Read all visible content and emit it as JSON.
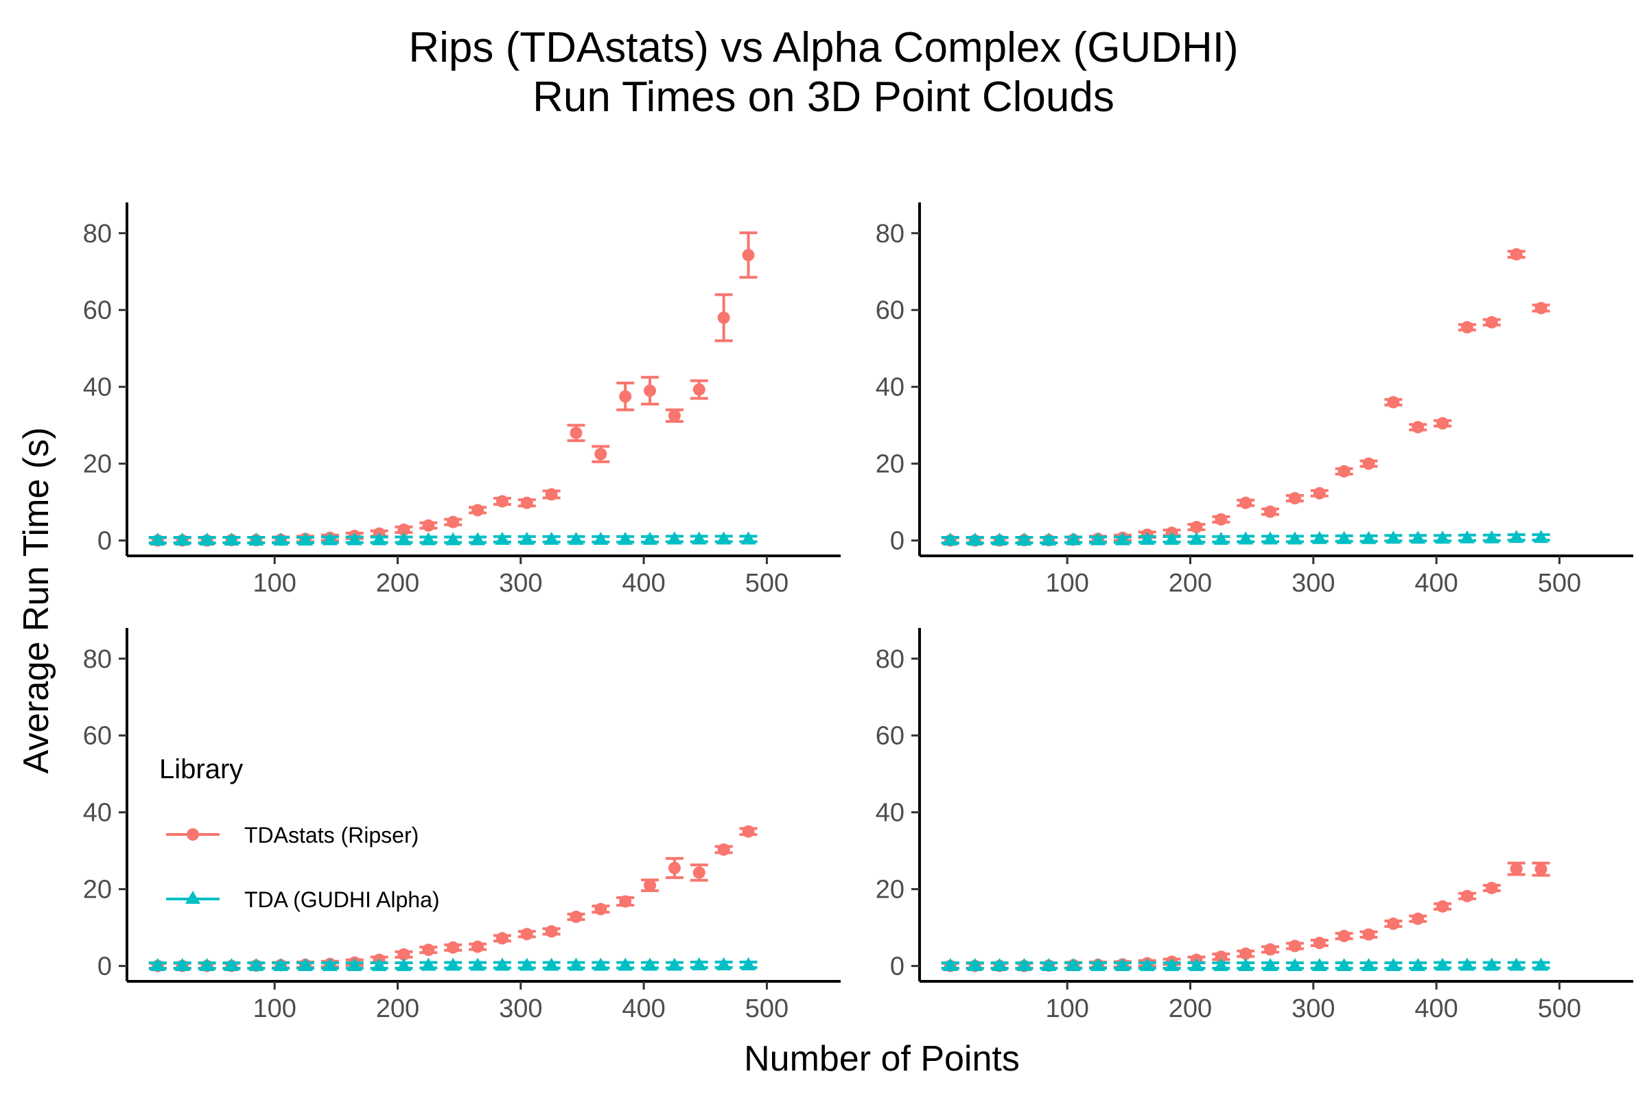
{
  "title_line1": "Rips (TDAstats) vs Alpha Complex (GUDHI)",
  "title_line2": "Run Times on 3D Point Clouds",
  "xlabel": "Number of Points",
  "ylabel": "Average Run Time (s)",
  "legend": {
    "title": "Library",
    "items": [
      {
        "label": "TDAstats (Ripser)",
        "color": "#F8766D",
        "shape": "circle"
      },
      {
        "label": "TDA (GUDHI Alpha)",
        "color": "#00BFC4",
        "shape": "triangle"
      }
    ]
  },
  "chart_data": {
    "type": "scatter",
    "xlim": [
      -20,
      560
    ],
    "ylim": [
      -4,
      88
    ],
    "x_ticks": [
      100,
      200,
      300,
      400,
      500
    ],
    "y_ticks": [
      0,
      20,
      40,
      60,
      80
    ],
    "grid": false,
    "legend_position": "inside bottom-left panel",
    "x": [
      5,
      25,
      45,
      65,
      85,
      105,
      125,
      145,
      165,
      185,
      205,
      225,
      245,
      265,
      285,
      305,
      325,
      345,
      365,
      385,
      405,
      425,
      445,
      465,
      485
    ],
    "panels": [
      {
        "series": [
          {
            "name": "TDAstats (Ripser)",
            "values": [
              0,
              0,
              0,
              0.1,
              0.1,
              0.2,
              0.4,
              0.7,
              1.2,
              1.8,
              2.8,
              3.9,
              4.8,
              7.9,
              10.2,
              9.8,
              12.0,
              28.0,
              22.5,
              37.5,
              39.0,
              32.5,
              39.3,
              58.0,
              74.3
            ],
            "errors": [
              0,
              0,
              0,
              0,
              0,
              0.1,
              0.1,
              0.2,
              0.3,
              0.4,
              0.5,
              0.5,
              0.6,
              0.7,
              0.8,
              0.8,
              0.9,
              2.0,
              2.0,
              3.5,
              3.5,
              1.5,
              2.3,
              6.0,
              5.8
            ]
          },
          {
            "name": "TDA (GUDHI Alpha)",
            "values": [
              0.1,
              0.1,
              0.1,
              0.1,
              0.1,
              0.1,
              0.1,
              0.2,
              0.2,
              0.2,
              0.2,
              0.2,
              0.2,
              0.2,
              0.3,
              0.3,
              0.3,
              0.3,
              0.3,
              0.3,
              0.3,
              0.4,
              0.4,
              0.4,
              0.4
            ],
            "errors": [
              0,
              0,
              0,
              0,
              0,
              0,
              0,
              0,
              0,
              0,
              0,
              0,
              0,
              0,
              0,
              0,
              0,
              0,
              0,
              0,
              0,
              0,
              0,
              0,
              0
            ]
          }
        ]
      },
      {
        "series": [
          {
            "name": "TDAstats (Ripser)",
            "values": [
              0,
              0,
              0,
              0.1,
              0.1,
              0.2,
              0.4,
              0.7,
              1.5,
              2.0,
              3.5,
              5.5,
              9.8,
              7.5,
              11.0,
              12.3,
              18.0,
              20.0,
              36.0,
              29.5,
              30.5,
              55.5,
              56.8,
              74.5,
              60.5
            ],
            "errors": [
              0,
              0,
              0,
              0,
              0,
              0,
              0.1,
              0.1,
              0.2,
              0.2,
              0.3,
              0.3,
              0.4,
              0.4,
              0.4,
              0.5,
              0.5,
              0.6,
              0.6,
              0.6,
              0.6,
              0.7,
              0.7,
              0.8,
              0.8
            ]
          },
          {
            "name": "TDA (GUDHI Alpha)",
            "values": [
              0.1,
              0.1,
              0.1,
              0.1,
              0.1,
              0.2,
              0.2,
              0.2,
              0.3,
              0.3,
              0.3,
              0.3,
              0.4,
              0.4,
              0.4,
              0.5,
              0.5,
              0.5,
              0.6,
              0.6,
              0.6,
              0.7,
              0.7,
              0.8,
              0.8
            ],
            "errors": [
              0,
              0,
              0,
              0,
              0,
              0,
              0,
              0,
              0,
              0,
              0,
              0,
              0,
              0,
              0,
              0,
              0,
              0,
              0,
              0,
              0,
              0,
              0,
              0,
              0
            ]
          }
        ]
      },
      {
        "series": [
          {
            "name": "TDAstats (Ripser)",
            "values": [
              0,
              0,
              0,
              0,
              0.1,
              0.2,
              0.3,
              0.5,
              0.9,
              1.6,
              3.0,
              4.2,
              4.8,
              5.0,
              7.2,
              8.3,
              9.0,
              12.8,
              14.8,
              16.8,
              21.0,
              25.5,
              24.3,
              30.3,
              35.0
            ],
            "errors": [
              0,
              0,
              0,
              0,
              0,
              0,
              0.1,
              0.1,
              0.2,
              0.3,
              0.4,
              0.4,
              0.5,
              0.5,
              0.5,
              0.6,
              0.6,
              0.7,
              0.8,
              1.0,
              1.4,
              2.5,
              2.0,
              0.8,
              0.8
            ]
          },
          {
            "name": "TDA (GUDHI Alpha)",
            "values": [
              0.1,
              0.1,
              0.1,
              0.1,
              0.1,
              0.1,
              0.1,
              0.1,
              0.1,
              0.1,
              0.1,
              0.2,
              0.2,
              0.2,
              0.2,
              0.2,
              0.2,
              0.2,
              0.2,
              0.2,
              0.2,
              0.2,
              0.3,
              0.3,
              0.3
            ],
            "errors": [
              0,
              0,
              0,
              0,
              0,
              0,
              0,
              0,
              0,
              0,
              0,
              0,
              0,
              0,
              0,
              0,
              0,
              0,
              0,
              0,
              0,
              0,
              0,
              0,
              0
            ]
          }
        ]
      },
      {
        "series": [
          {
            "name": "TDAstats (Ripser)",
            "values": [
              0,
              0,
              0,
              0,
              0.1,
              0.2,
              0.3,
              0.4,
              0.7,
              1.1,
              1.6,
              2.4,
              3.2,
              4.3,
              5.2,
              6.0,
              7.8,
              8.2,
              11.0,
              12.3,
              15.5,
              18.2,
              20.3,
              25.3,
              25.2
            ],
            "errors": [
              0,
              0,
              0,
              0,
              0,
              0,
              0,
              0.1,
              0.1,
              0.1,
              0.2,
              0.2,
              0.3,
              0.3,
              0.3,
              0.4,
              0.4,
              0.5,
              0.5,
              0.6,
              0.6,
              0.6,
              0.7,
              1.5,
              1.6
            ]
          },
          {
            "name": "TDA (GUDHI Alpha)",
            "values": [
              0.1,
              0.1,
              0.1,
              0.1,
              0.1,
              0.1,
              0.1,
              0.1,
              0.1,
              0.1,
              0.1,
              0.1,
              0.1,
              0.1,
              0.1,
              0.1,
              0.1,
              0.1,
              0.1,
              0.1,
              0.2,
              0.2,
              0.2,
              0.2,
              0.2
            ],
            "errors": [
              0,
              0,
              0,
              0,
              0,
              0,
              0,
              0,
              0,
              0,
              0,
              0,
              0,
              0,
              0,
              0,
              0,
              0,
              0,
              0,
              0,
              0,
              0,
              0,
              0
            ]
          }
        ]
      }
    ]
  }
}
